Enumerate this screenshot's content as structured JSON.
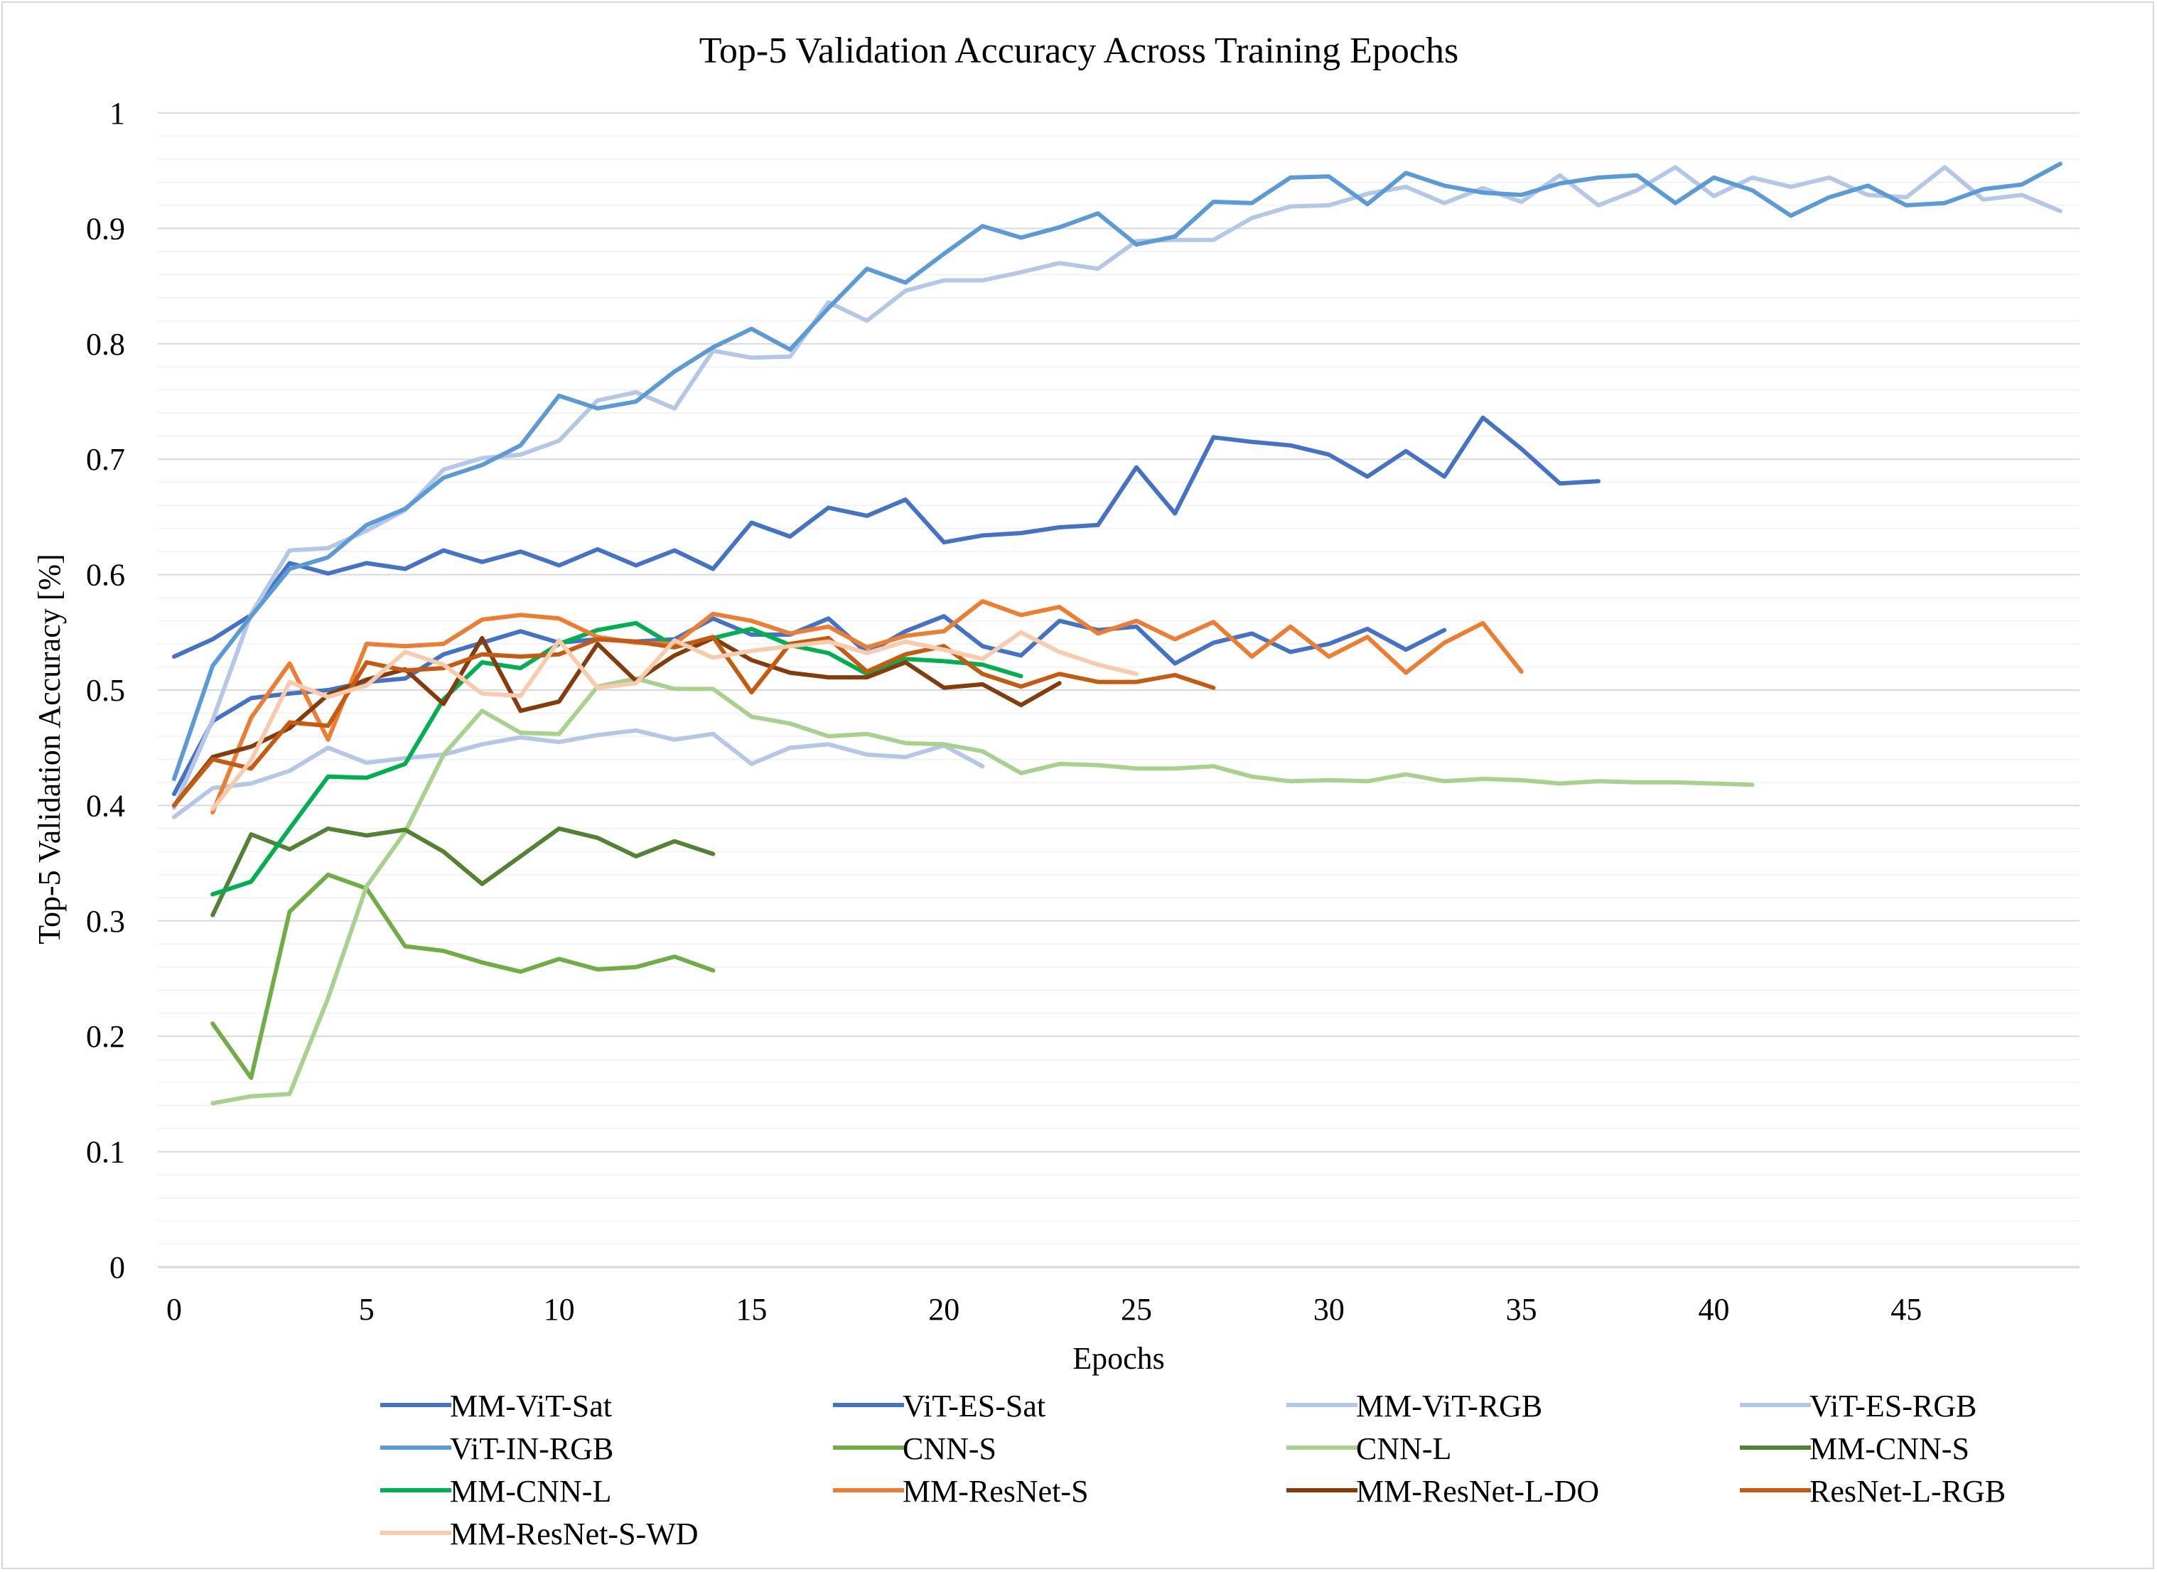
{
  "chart_data": {
    "type": "line",
    "title": "Top-5 Validation Accuracy Across Training Epochs",
    "xlabel": "Epochs",
    "ylabel": "Top-5 Validation Accuracy [%]",
    "xlim": [
      0,
      49.5
    ],
    "ylim": [
      0,
      1
    ],
    "xticks": [
      "0",
      "5",
      "10",
      "15",
      "20",
      "25",
      "30",
      "35",
      "40",
      "45"
    ],
    "yticks": [
      "0",
      "0.1",
      "0.2",
      "0.3",
      "0.4",
      "0.5",
      "0.6",
      "0.7",
      "0.8",
      "0.9",
      "1"
    ],
    "grid": true,
    "legend_position": "bottom",
    "series": [
      {
        "name": "MM-ViT-Sat",
        "color": "#4472c4",
        "values": [
          0.41,
          0.473,
          0.493,
          0.497,
          0.5,
          0.507,
          0.51,
          0.531,
          0.541,
          0.551,
          0.541,
          0.544,
          0.542,
          0.544,
          0.562,
          0.548,
          0.548,
          0.562,
          0.532,
          0.551,
          0.564,
          0.538,
          0.53,
          0.56,
          0.552,
          0.555,
          0.523,
          0.541,
          0.549,
          0.533,
          0.54,
          0.553,
          0.535,
          0.552
        ]
      },
      {
        "name": "ViT-ES-Sat",
        "color": "#4472c4",
        "values": [
          0.529,
          0.544,
          0.565,
          0.61,
          0.601,
          0.61,
          0.605,
          0.621,
          0.611,
          0.62,
          0.608,
          0.622,
          0.608,
          0.621,
          0.605,
          0.645,
          0.633,
          0.658,
          0.651,
          0.665,
          0.628,
          0.634,
          0.636,
          0.641,
          0.643,
          0.693,
          0.653,
          0.719,
          0.715,
          0.712,
          0.704,
          0.685,
          0.707,
          0.685,
          0.736,
          0.709,
          0.679,
          0.681
        ]
      },
      {
        "name": "MM-ViT-RGB",
        "color": "#b4c7e7",
        "values": [
          0.398,
          0.474,
          0.566,
          0.621,
          0.623,
          0.638,
          0.656,
          0.691,
          0.701,
          0.704,
          0.716,
          0.751,
          0.758,
          0.744,
          0.794,
          0.788,
          0.789,
          0.836,
          0.82,
          0.846,
          0.855,
          0.855,
          0.862,
          0.87,
          0.865,
          0.889,
          0.89,
          0.89,
          0.909,
          0.919,
          0.92,
          0.93,
          0.936,
          0.922,
          0.935,
          0.923,
          0.946,
          0.92,
          0.933,
          0.953,
          0.928,
          0.944,
          0.936,
          0.944,
          0.929,
          0.927,
          0.953,
          0.925,
          0.929,
          0.915
        ]
      },
      {
        "name": "ViT-ES-RGB",
        "color": "#b4c7e7",
        "values": [
          0.39,
          0.415,
          0.419,
          0.43,
          0.45,
          0.437,
          0.441,
          0.444,
          0.453,
          0.459,
          0.455,
          0.461,
          0.465,
          0.457,
          0.462,
          0.436,
          0.45,
          0.453,
          0.444,
          0.442,
          0.452,
          0.434
        ]
      },
      {
        "name": "ViT-IN-RGB",
        "color": "#5b9bd5",
        "values": [
          0.423,
          0.521,
          0.564,
          0.605,
          0.615,
          0.643,
          0.657,
          0.684,
          0.695,
          0.712,
          0.755,
          0.744,
          0.75,
          0.776,
          0.797,
          0.813,
          0.795,
          0.831,
          0.865,
          0.853,
          0.878,
          0.902,
          0.892,
          0.901,
          0.913,
          0.886,
          0.893,
          0.923,
          0.922,
          0.944,
          0.945,
          0.921,
          0.948,
          0.937,
          0.931,
          0.929,
          0.939,
          0.944,
          0.946,
          0.922,
          0.944,
          0.933,
          0.911,
          0.927,
          0.937,
          0.92,
          0.922,
          0.934,
          0.938,
          0.956
        ]
      },
      {
        "name": "CNN-S",
        "color": "#70ad47",
        "values": [
          null,
          0.211,
          0.164,
          0.308,
          0.34,
          0.328,
          0.278,
          0.274,
          0.264,
          0.256,
          0.267,
          0.258,
          0.26,
          0.269,
          0.257
        ]
      },
      {
        "name": "CNN-L",
        "color": "#a9d18e",
        "values": [
          null,
          0.142,
          0.148,
          0.15,
          0.233,
          0.33,
          0.377,
          0.444,
          0.482,
          0.463,
          0.462,
          0.503,
          0.51,
          0.501,
          0.501,
          0.477,
          0.471,
          0.46,
          0.462,
          0.454,
          0.453,
          0.447,
          0.428,
          0.436,
          0.435,
          0.432,
          0.432,
          0.434,
          0.425,
          0.421,
          0.422,
          0.421,
          0.427,
          0.421,
          0.423,
          0.422,
          0.419,
          0.421,
          0.42,
          0.42,
          0.419,
          0.418
        ]
      },
      {
        "name": "MM-CNN-S",
        "color": "#548235",
        "values": [
          null,
          0.305,
          0.375,
          0.362,
          0.38,
          0.374,
          0.379,
          0.36,
          0.332,
          0.356,
          0.38,
          0.372,
          0.356,
          0.369,
          0.358
        ]
      },
      {
        "name": "MM-CNN-L",
        "color": "#00b050",
        "values": [
          null,
          0.323,
          0.334,
          0.38,
          0.425,
          0.424,
          0.436,
          0.492,
          0.524,
          0.519,
          0.54,
          0.552,
          0.558,
          0.538,
          0.545,
          0.553,
          0.539,
          0.532,
          0.514,
          0.527,
          0.525,
          0.522,
          0.512
        ]
      },
      {
        "name": "MM-ResNet-S",
        "color": "#ed7d31",
        "values": [
          null,
          0.394,
          0.476,
          0.523,
          0.457,
          0.54,
          0.538,
          0.54,
          0.561,
          0.565,
          0.562,
          0.546,
          0.541,
          0.54,
          0.566,
          0.56,
          0.549,
          0.555,
          0.537,
          0.547,
          0.551,
          0.577,
          0.565,
          0.572,
          0.549,
          0.56,
          0.544,
          0.559,
          0.529,
          0.555,
          0.529,
          0.546,
          0.515,
          0.541,
          0.558,
          0.516
        ]
      },
      {
        "name": "MM-ResNet-L-DO",
        "color": "#843c0c",
        "values": [
          0.4,
          0.442,
          0.451,
          0.467,
          0.496,
          0.509,
          0.518,
          0.488,
          0.545,
          0.482,
          0.49,
          0.54,
          0.508,
          0.53,
          0.545,
          0.526,
          0.515,
          0.511,
          0.511,
          0.524,
          0.502,
          0.505,
          0.487,
          0.506
        ]
      },
      {
        "name": "ResNet-L-RGB",
        "color": "#c55a11",
        "values": [
          0.4,
          0.44,
          0.432,
          0.472,
          0.469,
          0.524,
          0.517,
          0.519,
          0.531,
          0.529,
          0.531,
          0.544,
          0.542,
          0.537,
          0.546,
          0.498,
          0.54,
          0.545,
          0.516,
          0.531,
          0.538,
          0.514,
          0.503,
          0.514,
          0.507,
          0.507,
          0.513,
          0.502
        ]
      },
      {
        "name": "MM-ResNet-S-WD",
        "color": "#f8cbad",
        "values": [
          null,
          0.397,
          0.439,
          0.507,
          0.494,
          0.504,
          0.533,
          0.522,
          0.497,
          0.495,
          0.543,
          0.502,
          0.506,
          0.543,
          0.528,
          0.534,
          0.538,
          0.542,
          0.532,
          0.542,
          0.535,
          0.527,
          0.55,
          0.533,
          0.522,
          0.514
        ]
      }
    ]
  }
}
